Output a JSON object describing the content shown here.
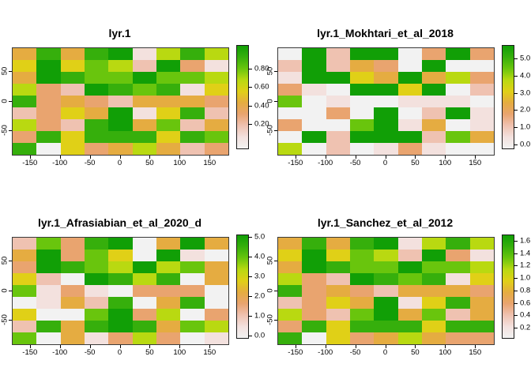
{
  "figure": {
    "background": "#FFFFFF",
    "layout": "2x2 raster heatmap panels with right-side color legends"
  },
  "palette": {
    "order": [
      "W",
      "E",
      "P",
      "S",
      "O",
      "Y",
      "C",
      "A",
      "G",
      "D"
    ],
    "colors": {
      "W": "#F2F2F2",
      "E": "#F3E1DE",
      "P": "#EFC2B1",
      "S": "#E9A46F",
      "O": "#E5AC41",
      "Y": "#E0D017",
      "C": "#B9D911",
      "A": "#69C50D",
      "G": "#36AF0C",
      "D": "#119F06"
    },
    "note": "reversed terrain-style ramp: white/pale-pink (low) through orange and yellow to green (high)"
  },
  "axes": {
    "x_tick_labels": [
      "-150",
      "-100",
      "-50",
      "0",
      "50",
      "100",
      "150"
    ],
    "x_tick_values": [
      -150,
      -100,
      -50,
      0,
      50,
      100,
      150
    ],
    "y_tick_labels": [
      "50",
      "0",
      "-50"
    ],
    "y_tick_values": [
      50,
      0,
      -50
    ],
    "x_range": [
      -180,
      180
    ],
    "y_range": [
      -90,
      90
    ]
  },
  "chart_data": [
    {
      "type": "heatmap",
      "title": "lyr.1",
      "grid_shape": {
        "rows": 9,
        "cols": 9
      },
      "x_range": [
        -180,
        180
      ],
      "y_range": [
        -90,
        90
      ],
      "legend": {
        "position": "right",
        "min": -0.06,
        "max": 1.06,
        "tick_labels": [
          "0.80",
          "0.60",
          "0.40",
          "0.20"
        ],
        "tick_values": [
          0.8,
          0.6,
          0.4,
          0.2
        ]
      },
      "level_values_approx": {
        "W": 0.0,
        "E": 0.11,
        "P": 0.22,
        "S": 0.33,
        "O": 0.45,
        "Y": 0.56,
        "C": 0.67,
        "A": 0.78,
        "G": 0.9,
        "D": 1.01
      },
      "cell_levels": [
        "OGOGDECGC",
        "YDYACPDSE",
        "ODGAADAAC",
        "CSPDGAGEY",
        "GSOSPOOOS",
        "PSYODEYGP",
        "CSPGDOAPO",
        "SGYGGGYGA",
        "GWYSOCOPS"
      ]
    },
    {
      "type": "heatmap",
      "title": "lyr.1_Mokhtari_et_al_2018",
      "grid_shape": {
        "rows": 9,
        "cols": 9
      },
      "x_range": [
        -180,
        180
      ],
      "y_range": [
        -90,
        90
      ],
      "legend": {
        "position": "right",
        "min": -0.2,
        "max": 5.8,
        "tick_labels": [
          "5.0",
          "4.0",
          "3.0",
          "2.0",
          "1.0",
          "0.0"
        ],
        "tick_values": [
          5,
          4,
          3,
          2,
          1,
          0
        ]
      },
      "level_values_approx": {
        "W": 0.1,
        "E": 0.7,
        "P": 1.3,
        "S": 1.9,
        "O": 2.5,
        "Y": 3.1,
        "C": 3.7,
        "A": 4.3,
        "G": 4.9,
        "D": 5.5
      },
      "cell_levels": [
        "WDPDDWSDS",
        "PDPOSWDWW",
        "EDDYODOCS",
        "SEWDDYDWP",
        "AWEWWEEEW",
        "WWSWDWPDE",
        "SWWADEOWE",
        "WDPDDDPAO",
        "CWPWESEWW"
      ]
    },
    {
      "type": "heatmap",
      "title": "lyr.1_Afrasiabian_et_al_2020_d",
      "grid_shape": {
        "rows": 9,
        "cols": 9
      },
      "x_range": [
        -180,
        180
      ],
      "y_range": [
        -90,
        90
      ],
      "legend": {
        "position": "right",
        "min": -0.1,
        "max": 5.1,
        "tick_labels": [
          "5.0",
          "4.0",
          "3.0",
          "2.0",
          "1.0",
          "0.0"
        ],
        "tick_values": [
          5,
          4,
          3,
          2,
          1,
          0
        ]
      },
      "level_values_approx": {
        "W": 0.2,
        "E": 0.7,
        "P": 1.2,
        "S": 1.7,
        "O": 2.2,
        "Y": 2.8,
        "C": 3.3,
        "A": 3.8,
        "G": 4.3,
        "D": 4.8
      },
      "cell_levels": [
        "PASGDWODO",
        "ODSAYWDEW",
        "SDGACDCAO",
        "YPWDGCGWO",
        "AESEWSSSW",
        "WEOPGWOGW",
        "YWWADSCWS",
        "PGOGDGOAC",
        "AWOESCSWE"
      ]
    },
    {
      "type": "heatmap",
      "title": "lyr.1_Sanchez_et_al_2012",
      "grid_shape": {
        "rows": 9,
        "cols": 9
      },
      "x_range": [
        -180,
        180
      ],
      "y_range": [
        -90,
        90
      ],
      "legend": {
        "position": "right",
        "min": 0.05,
        "max": 1.7,
        "tick_labels": [
          "1.6",
          "1.4",
          "1.2",
          "1.0",
          "0.8",
          "0.6",
          "0.4",
          "0.2"
        ],
        "tick_values": [
          1.6,
          1.4,
          1.2,
          1.0,
          0.8,
          0.6,
          0.4,
          0.2
        ]
      },
      "level_values_approx": {
        "W": 0.13,
        "E": 0.3,
        "P": 0.46,
        "S": 0.63,
        "O": 0.79,
        "Y": 0.96,
        "C": 1.12,
        "A": 1.29,
        "G": 1.45,
        "D": 1.62
      },
      "cell_levels": [
        "OGOGDECGC",
        "YDYACPDSE",
        "ODGAADAAC",
        "CSPDGAGEY",
        "GSOSPOOOS",
        "PSYODEYGO",
        "CSPADOAPO",
        "SGYGGGYGG",
        "GWYSOCOSS"
      ]
    }
  ]
}
